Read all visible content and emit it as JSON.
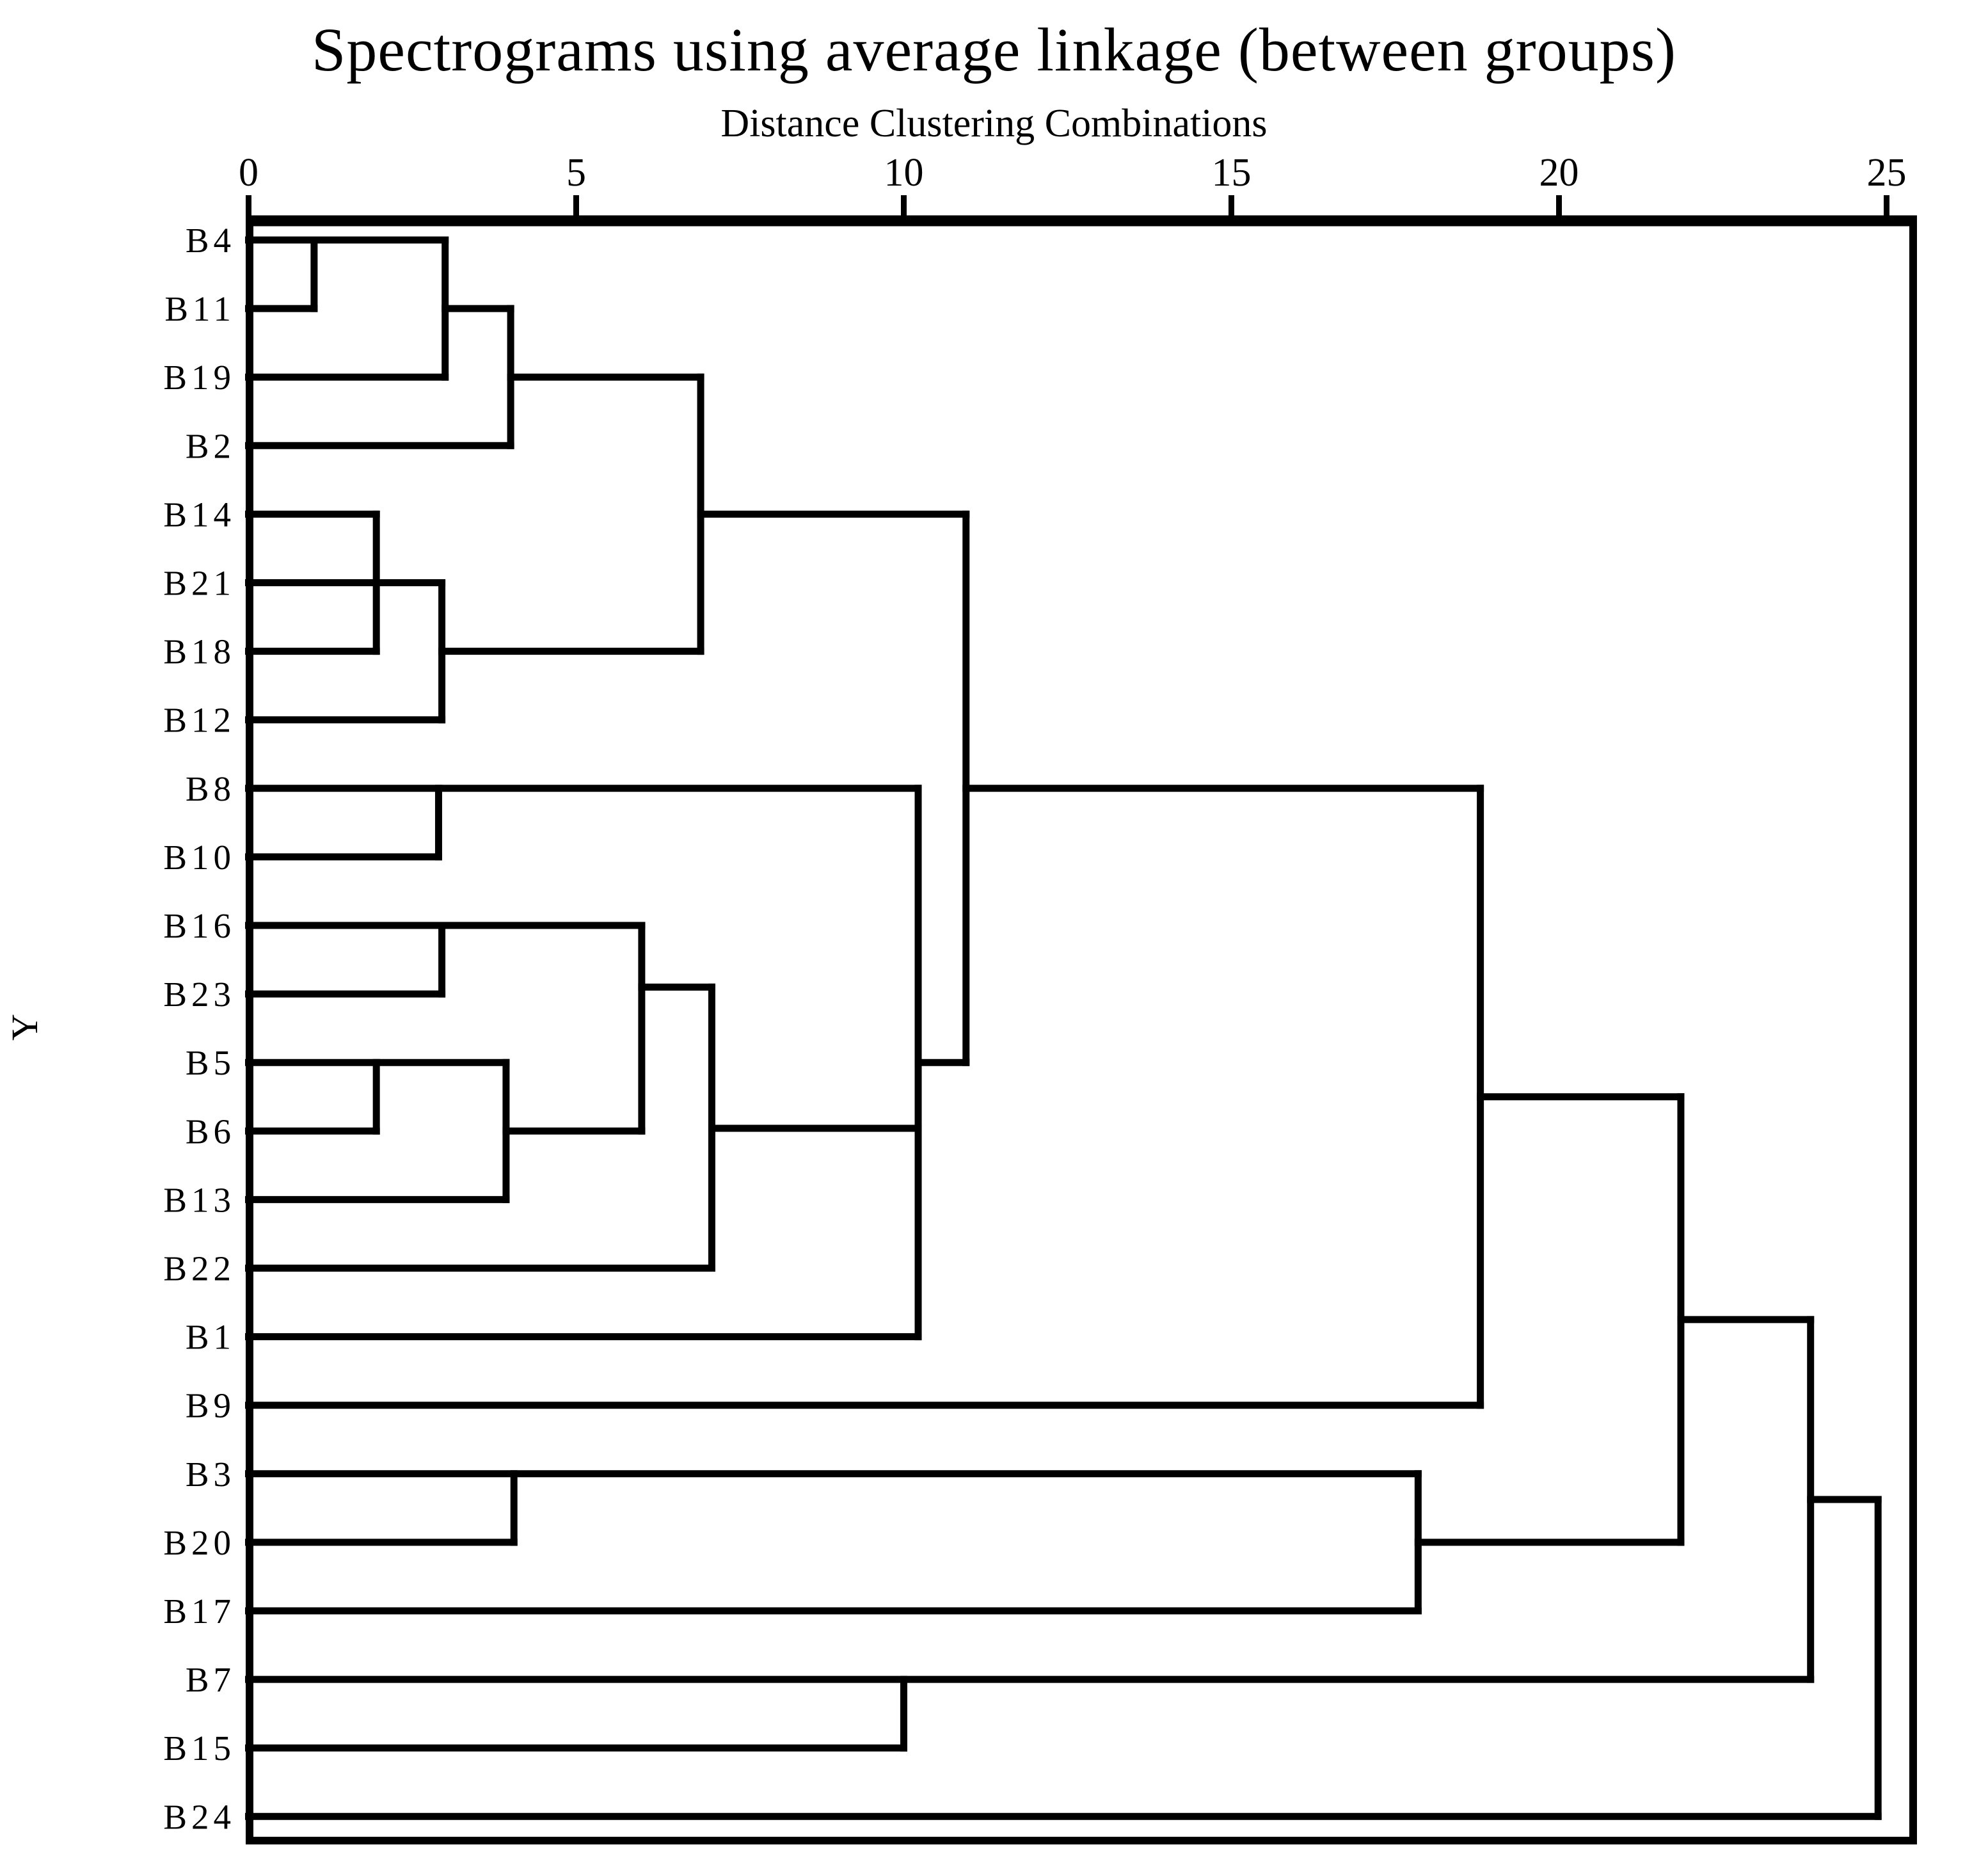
{
  "page": {
    "background": "#ffffff",
    "ink": "#000000"
  },
  "header": {
    "title": "Spectrograms using average linkage (between groups)",
    "subtitle": "Distance Clustering Combinations"
  },
  "y_axis": {
    "label": "Y"
  },
  "x_axis": {
    "ticks": [
      "0",
      "5",
      "10",
      "15",
      "20",
      "25"
    ],
    "tick_values": [
      0,
      5,
      10,
      15,
      20,
      25
    ],
    "range": [
      0,
      25.4
    ]
  },
  "chart_data": {
    "type": "dendrogram",
    "orientation": "left-to-right",
    "title": "Spectrograms using average linkage (between groups)",
    "xlabel": "Distance Clustering Combinations",
    "ylabel": "Y",
    "xlim": [
      0,
      25.4
    ],
    "grid": false,
    "legend": false,
    "leaves": [
      "B4",
      "B11",
      "B19",
      "B2",
      "B14",
      "B21",
      "B18",
      "B12",
      "B8",
      "B10",
      "B16",
      "B23",
      "B5",
      "B6",
      "B13",
      "B22",
      "B1",
      "B9",
      "B3",
      "B20",
      "B17",
      "B7",
      "B15",
      "B24"
    ],
    "merges": [
      {
        "join": [
          "B4",
          "B11"
        ],
        "distance": 1.0
      },
      {
        "join": [
          "B14",
          "B21",
          "B18"
        ],
        "distance": 1.95
      },
      {
        "join": [
          "B5",
          "B6"
        ],
        "distance": 1.95
      },
      {
        "join": [
          "B8",
          "B10"
        ],
        "distance": 2.9
      },
      {
        "join": [
          "B16",
          "B23"
        ],
        "distance": 2.95
      },
      {
        "join": [
          "{B14,B21,B18}",
          "B12"
        ],
        "distance": 2.95
      },
      {
        "join": [
          "{B4,B11}",
          "B19"
        ],
        "distance": 3.0
      },
      {
        "join": [
          "{B5,B6}",
          "B13"
        ],
        "distance": 3.93
      },
      {
        "join": [
          "{B4,B11,B19}",
          "B2"
        ],
        "distance": 4.0
      },
      {
        "join": [
          "B3",
          "B20"
        ],
        "distance": 4.05
      },
      {
        "join": [
          "{B16,B23}",
          "{B5,B6,B13}"
        ],
        "distance": 6.0
      },
      {
        "join": [
          "{B4,B11,B19,B2}",
          "{B14,B21,B18,B12}"
        ],
        "distance": 6.9
      },
      {
        "join": [
          "{B16,B23,B5,B6,B13}",
          "B22"
        ],
        "distance": 7.07
      },
      {
        "join": [
          "B7",
          "B15"
        ],
        "distance": 10.0
      },
      {
        "join": [
          "{B8,B10}",
          "{B16,B23,B5,B6,B13,B22}",
          "B1"
        ],
        "distance": 10.22
      },
      {
        "join": [
          "{B4,B11,B19,B2,B14,B21,B18,B12}",
          "{B8,B10,B16,B23,B5,B6,B13,B22,B1}"
        ],
        "distance": 10.95
      },
      {
        "join": [
          "{B3,B20}",
          "B17"
        ],
        "distance": 17.85
      },
      {
        "join": [
          "{top cluster}",
          "B9"
        ],
        "distance": 18.8
      },
      {
        "join": [
          "{top cluster,B9}",
          "{B3,B20,B17}"
        ],
        "distance": 21.86
      },
      {
        "join": [
          "{all previous}",
          "{B7,B15}"
        ],
        "distance": 23.84
      },
      {
        "join": [
          "{all previous}",
          "B24"
        ],
        "distance": 24.87
      }
    ],
    "segments": {
      "h": [
        [
          0,
          0,
          3.0
        ],
        [
          1,
          0,
          1.0
        ],
        [
          2,
          0,
          3.0
        ],
        [
          3,
          0,
          4.0
        ],
        [
          4,
          0,
          1.95
        ],
        [
          5,
          0,
          2.95
        ],
        [
          6,
          0,
          1.95
        ],
        [
          7,
          0,
          2.95
        ],
        [
          8,
          0,
          10.22
        ],
        [
          9,
          0,
          2.9
        ],
        [
          10,
          0,
          6.0
        ],
        [
          11,
          0,
          2.95
        ],
        [
          12,
          0,
          3.93
        ],
        [
          13,
          0,
          1.95
        ],
        [
          14,
          0,
          3.93
        ],
        [
          15,
          0,
          7.07
        ],
        [
          16,
          0,
          10.22
        ],
        [
          17,
          0,
          18.8
        ],
        [
          18,
          0,
          17.85
        ],
        [
          19,
          0,
          4.05
        ],
        [
          20,
          0,
          17.85
        ],
        [
          21,
          0,
          23.84
        ],
        [
          22,
          0,
          10.0
        ],
        [
          23,
          0,
          24.87
        ],
        [
          1,
          3.0,
          4.0
        ],
        [
          2,
          4.0,
          6.9
        ],
        [
          6,
          2.95,
          6.9
        ],
        [
          4,
          6.9,
          10.95
        ],
        [
          13,
          3.93,
          6.0
        ],
        [
          10.9,
          6.0,
          7.07
        ],
        [
          12.96,
          7.07,
          10.22
        ],
        [
          12,
          10.22,
          10.95
        ],
        [
          8,
          10.95,
          18.8
        ],
        [
          12.5,
          18.8,
          21.86
        ],
        [
          19,
          17.85,
          21.86
        ],
        [
          15.75,
          21.86,
          23.84
        ],
        [
          18.375,
          23.84,
          24.87
        ]
      ],
      "v": [
        [
          1.0,
          0,
          1
        ],
        [
          3.0,
          0,
          2
        ],
        [
          4.0,
          1,
          3
        ],
        [
          1.95,
          4,
          6
        ],
        [
          2.95,
          5,
          7
        ],
        [
          2.9,
          8,
          9
        ],
        [
          2.95,
          10,
          11
        ],
        [
          1.95,
          12,
          13
        ],
        [
          3.93,
          12,
          14
        ],
        [
          6.0,
          10,
          13
        ],
        [
          6.9,
          2,
          6
        ],
        [
          7.07,
          10.9,
          15
        ],
        [
          10.22,
          8,
          16
        ],
        [
          10.95,
          4,
          12
        ],
        [
          10.0,
          21,
          22
        ],
        [
          4.05,
          18,
          19
        ],
        [
          17.85,
          18,
          20
        ],
        [
          18.8,
          8,
          17
        ],
        [
          21.86,
          12.5,
          19
        ],
        [
          23.84,
          15.75,
          21
        ],
        [
          24.87,
          18.375,
          23
        ]
      ]
    }
  }
}
